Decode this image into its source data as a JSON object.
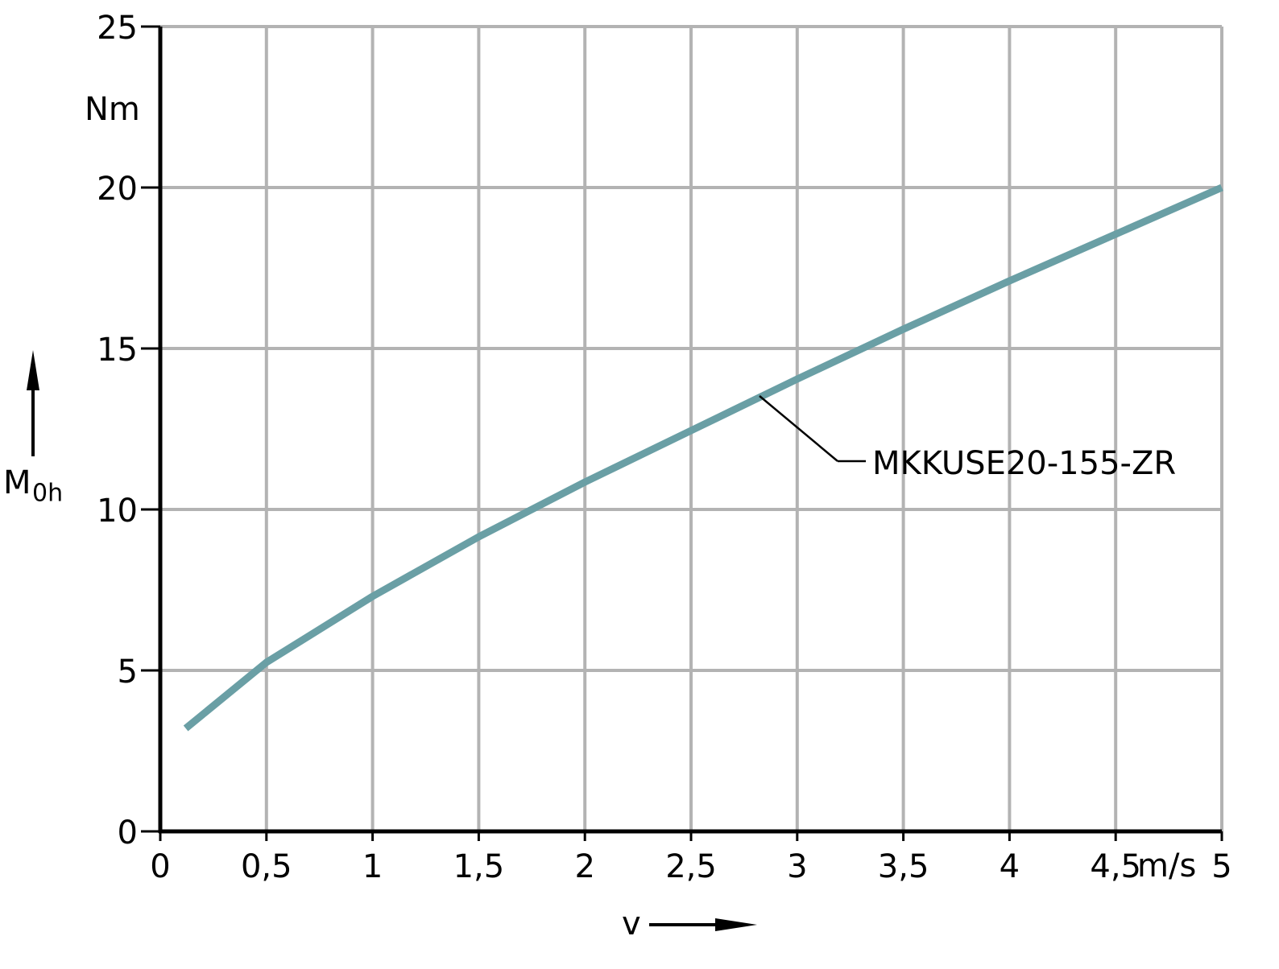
{
  "chart_data": {
    "type": "line",
    "x_label": "v",
    "x_unit": "m/s",
    "y_label": {
      "text": "M",
      "subscript": "0h"
    },
    "y_unit": "Nm",
    "xlim": [
      0,
      5
    ],
    "ylim": [
      0,
      25
    ],
    "xticks": [
      0,
      {
        "value": 0.5,
        "label": "0,5"
      },
      1,
      {
        "value": 1.5,
        "label": "1,5"
      },
      2,
      {
        "value": 2.5,
        "label": "2,5"
      },
      3,
      {
        "value": 3.5,
        "label": "3,5"
      },
      4,
      {
        "value": 4.5,
        "label": "4,5"
      },
      5
    ],
    "yticks": [
      0,
      5,
      10,
      15,
      20,
      25
    ],
    "grid": true,
    "series": [
      {
        "name": "MKKUSE20-155-ZR",
        "color": "#6a9fa5",
        "x": [
          0.12,
          0.5,
          1,
          1.5,
          1.75,
          2,
          2.5,
          3,
          3.5,
          4,
          4.5,
          5
        ],
        "values": [
          3.2,
          5.25,
          7.3,
          9.15,
          10,
          10.85,
          12.45,
          14.05,
          15.6,
          17.1,
          18.55,
          20
        ]
      }
    ]
  }
}
